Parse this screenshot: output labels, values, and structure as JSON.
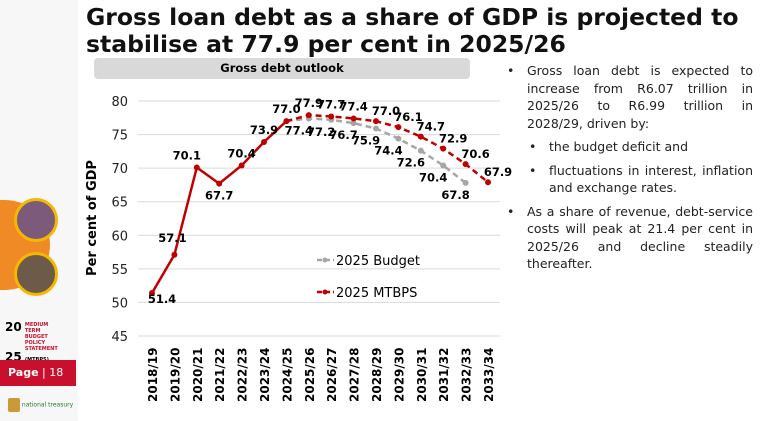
{
  "title": "Gross loan debt as a share of GDP is projected to stabilise at 77.9 per cent in 2025/26",
  "chart_data": {
    "type": "line",
    "title": "Gross debt outlook",
    "ylabel": "Per cent of GDP",
    "xlabel": "",
    "ylim": [
      45,
      80
    ],
    "yticks": [
      45,
      50,
      55,
      60,
      65,
      70,
      75,
      80
    ],
    "grid": true,
    "legend": "inside-lower-right",
    "categories": [
      "2018/19",
      "2019/20",
      "2020/21",
      "2021/22",
      "2022/23",
      "2023/24",
      "2024/25",
      "2025/26",
      "2026/27",
      "2027/28",
      "2028/29",
      "2029/30",
      "2030/31",
      "2031/32",
      "2032/33",
      "2033/34"
    ],
    "series": [
      {
        "name": "2025 Budget",
        "color": "#a6a6a6",
        "values": [
          null,
          null,
          null,
          null,
          null,
          null,
          77.0,
          77.4,
          77.2,
          76.7,
          75.9,
          74.4,
          72.6,
          70.4,
          67.8,
          null
        ]
      },
      {
        "name": "2025 MTBPS",
        "color": "#c00000",
        "values": [
          51.4,
          57.1,
          70.1,
          67.7,
          70.4,
          73.9,
          77.0,
          77.9,
          77.7,
          77.4,
          77.0,
          76.1,
          74.7,
          72.9,
          70.6,
          67.9
        ]
      }
    ]
  },
  "bullets": [
    "Gross loan debt is expected to increase from R6.07 trillion in 2025/26 to R6.99 trillion in 2028/29, driven by:",
    "the budget deficit and",
    "fluctuations in interest, inflation and exchange rates.",
    "As a share of revenue, debt-service costs will peak at 21.4 per cent in 2025/26 and decline steadily thereafter."
  ],
  "sidebar": {
    "year_top": "20",
    "year_bottom": "25",
    "statement": "MEDIUM TERM BUDGET POLICY STATEMENT",
    "abbr": "(MTBPS)",
    "page_label": "Page",
    "page_number": "18",
    "logo_text": "national treasury"
  }
}
